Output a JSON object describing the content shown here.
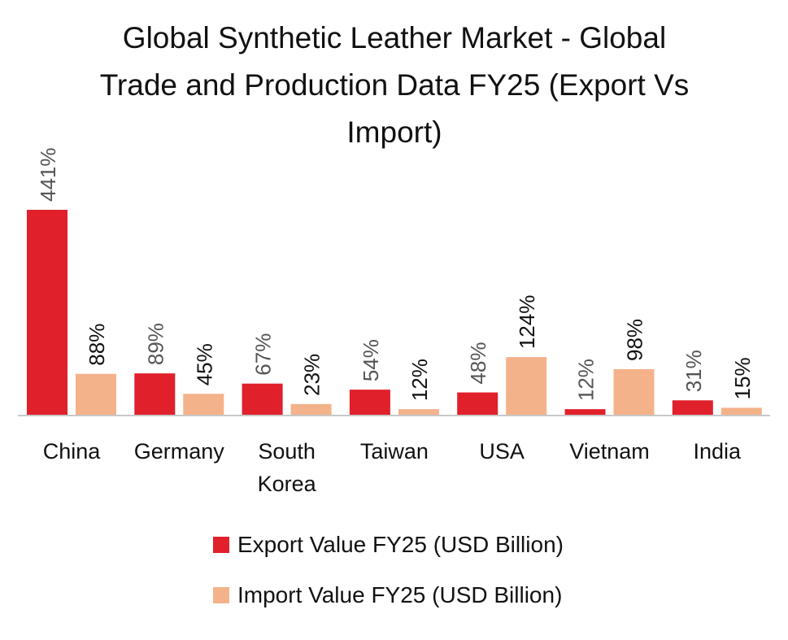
{
  "colors": {
    "export": "#e0202b",
    "import": "#f4b28a",
    "axis": "#c8c8c8"
  },
  "chart_data": {
    "type": "bar",
    "title": "Global Synthetic Leather Market - Global Trade and Production Data FY25 (Export Vs Import)",
    "title_lines": [
      "Global Synthetic Leather Market - Global",
      "Trade and Production Data FY25 (Export Vs",
      "Import)"
    ],
    "categories": [
      "China",
      "Germany",
      "South Korea",
      "Taiwan",
      "USA",
      "Vietnam",
      "India"
    ],
    "category_lines": [
      [
        "China"
      ],
      [
        "Germany"
      ],
      [
        "South",
        "Korea"
      ],
      [
        "Taiwan"
      ],
      [
        "USA"
      ],
      [
        "Vietnam"
      ],
      [
        "India"
      ]
    ],
    "series": [
      {
        "name": "Export Value FY25 (USD Billion)",
        "values": [
          441,
          89,
          67,
          54,
          48,
          12,
          31
        ],
        "labels": [
          "441%",
          "89%",
          "67%",
          "54%",
          "48%",
          "12%",
          "31%"
        ]
      },
      {
        "name": "Import Value FY25 (USD Billion)",
        "values": [
          88,
          45,
          23,
          12,
          124,
          98,
          15
        ],
        "labels": [
          "88%",
          "45%",
          "23%",
          "12%",
          "124%",
          "98%",
          "15%"
        ]
      }
    ],
    "ylim": [
      0,
      441
    ],
    "grid": false,
    "legend_position": "bottom"
  }
}
